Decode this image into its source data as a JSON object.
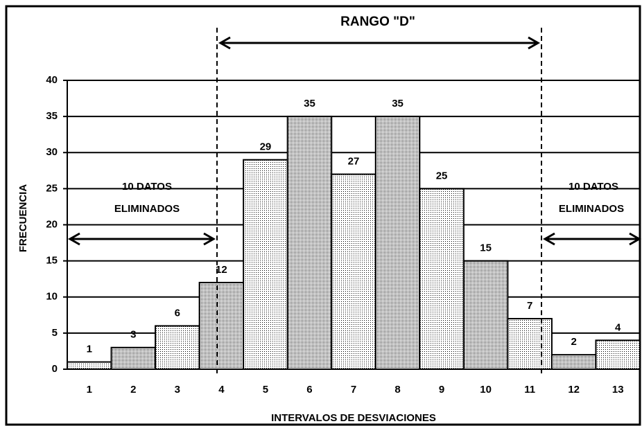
{
  "chart_data": {
    "type": "bar",
    "categories": [
      "1",
      "2",
      "3",
      "4",
      "5",
      "6",
      "7",
      "8",
      "9",
      "10",
      "11",
      "12",
      "13"
    ],
    "values": [
      1,
      3,
      6,
      12,
      29,
      35,
      27,
      35,
      25,
      15,
      7,
      2,
      4
    ],
    "color": "#000000",
    "ylim": [
      0,
      40
    ],
    "yticks": [
      0,
      5,
      10,
      15,
      20,
      25,
      30,
      35,
      40
    ],
    "grid": true,
    "x_label": "INTERVALOS DE DESVIACIONES",
    "y_label": "FRECUENCIA",
    "range_label": "RANGO \"D\"",
    "left_note": [
      "10 DATOS",
      "ELIMINADOS"
    ],
    "right_note": [
      "10 DATOS",
      "ELIMINADOS"
    ]
  }
}
